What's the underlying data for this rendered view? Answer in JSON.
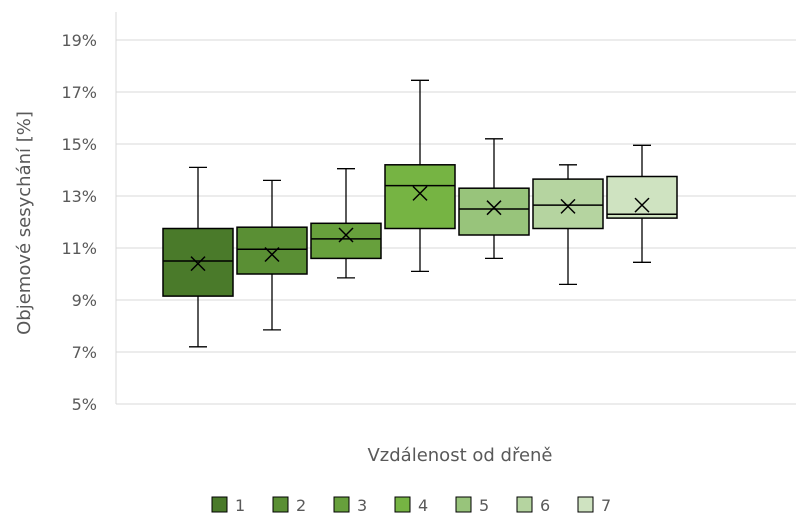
{
  "chart_data": {
    "type": "boxplot",
    "title": "",
    "xlabel": "Vzdálenost od dřeně",
    "ylabel": "Objemové sesychání [%]",
    "ylim": [
      5,
      19
    ],
    "yticks": [
      "5%",
      "7%",
      "9%",
      "11%",
      "13%",
      "15%",
      "17%",
      "19%"
    ],
    "grid": true,
    "legend_position": "bottom",
    "series": [
      {
        "name": "1",
        "color": "#4a7a2a",
        "min": 7.2,
        "q1": 9.15,
        "median": 10.5,
        "mean": 10.4,
        "q3": 11.75,
        "max": 14.1
      },
      {
        "name": "2",
        "color": "#5a8f34",
        "min": 7.85,
        "q1": 10.0,
        "median": 10.95,
        "mean": 10.75,
        "q3": 11.8,
        "max": 13.6
      },
      {
        "name": "3",
        "color": "#67a03c",
        "min": 9.85,
        "q1": 10.6,
        "median": 11.35,
        "mean": 11.5,
        "q3": 11.95,
        "max": 14.05
      },
      {
        "name": "4",
        "color": "#76b443",
        "min": 10.1,
        "q1": 11.75,
        "median": 13.4,
        "mean": 13.1,
        "q3": 14.2,
        "max": 17.45
      },
      {
        "name": "5",
        "color": "#98c47b",
        "min": 10.6,
        "q1": 11.5,
        "median": 12.5,
        "mean": 12.55,
        "q3": 13.3,
        "max": 15.2
      },
      {
        "name": "6",
        "color": "#b5d4a0",
        "min": 9.6,
        "q1": 11.75,
        "median": 12.65,
        "mean": 12.6,
        "q3": 13.65,
        "max": 14.2
      },
      {
        "name": "7",
        "color": "#cfe3c1",
        "min": 10.45,
        "q1": 12.15,
        "median": 12.3,
        "mean": 12.65,
        "q3": 13.75,
        "max": 14.95
      }
    ]
  }
}
